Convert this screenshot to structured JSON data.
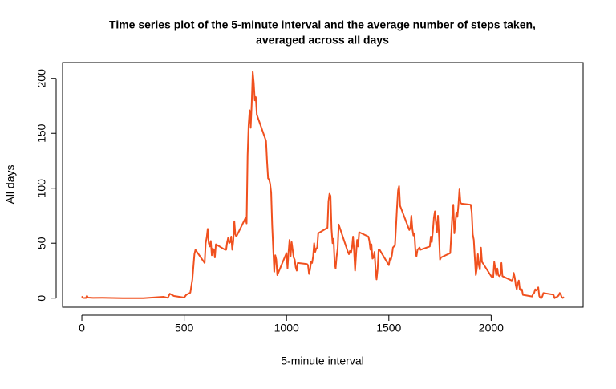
{
  "chart_data": {
    "type": "line",
    "title": [
      "Time series plot of the 5-minute interval and the average number of steps taken,",
      "averaged across all days"
    ],
    "x_label": "5-minute interval",
    "y_label": "All days",
    "x": [
      0,
      5,
      10,
      15,
      20,
      25,
      30,
      55,
      100,
      200,
      300,
      400,
      420,
      430,
      440,
      450,
      500,
      510,
      530,
      540,
      550,
      555,
      600,
      605,
      610,
      615,
      620,
      625,
      630,
      635,
      640,
      645,
      650,
      655,
      700,
      705,
      710,
      715,
      720,
      725,
      730,
      735,
      740,
      745,
      750,
      755,
      800,
      805,
      810,
      815,
      820,
      825,
      830,
      835,
      840,
      845,
      850,
      855,
      900,
      905,
      910,
      915,
      920,
      925,
      930,
      935,
      940,
      945,
      950,
      955,
      1000,
      1005,
      1010,
      1015,
      1020,
      1025,
      1030,
      1035,
      1040,
      1045,
      1050,
      1055,
      1100,
      1105,
      1110,
      1115,
      1120,
      1125,
      1130,
      1135,
      1140,
      1145,
      1150,
      1155,
      1200,
      1205,
      1210,
      1215,
      1220,
      1225,
      1230,
      1235,
      1240,
      1245,
      1250,
      1255,
      1300,
      1305,
      1310,
      1315,
      1320,
      1325,
      1330,
      1335,
      1340,
      1345,
      1350,
      1355,
      1400,
      1405,
      1410,
      1415,
      1420,
      1425,
      1430,
      1435,
      1440,
      1445,
      1450,
      1455,
      1500,
      1505,
      1510,
      1515,
      1520,
      1525,
      1530,
      1535,
      1540,
      1545,
      1550,
      1555,
      1600,
      1605,
      1610,
      1615,
      1620,
      1625,
      1630,
      1635,
      1640,
      1645,
      1650,
      1655,
      1700,
      1705,
      1710,
      1715,
      1720,
      1725,
      1730,
      1735,
      1740,
      1745,
      1750,
      1755,
      1800,
      1805,
      1810,
      1815,
      1820,
      1825,
      1830,
      1835,
      1840,
      1845,
      1850,
      1855,
      1900,
      1905,
      1910,
      1915,
      1920,
      1925,
      1930,
      1935,
      1940,
      1945,
      1950,
      1955,
      2000,
      2005,
      2010,
      2015,
      2020,
      2025,
      2030,
      2035,
      2040,
      2045,
      2050,
      2055,
      2100,
      2105,
      2110,
      2115,
      2120,
      2125,
      2130,
      2135,
      2140,
      2145,
      2150,
      2155,
      2200,
      2205,
      2210,
      2215,
      2220,
      2225,
      2230,
      2235,
      2240,
      2245,
      2250,
      2255,
      2300,
      2305,
      2310,
      2315,
      2320,
      2325,
      2330,
      2335,
      2340,
      2345,
      2350,
      2355
    ],
    "series": [
      {
        "name": "All days",
        "color": "#f0501e",
        "values": [
          1.7,
          0.3,
          0.1,
          0.2,
          0.1,
          2.1,
          0.5,
          0.2,
          0.3,
          0,
          0,
          1.2,
          0.3,
          4,
          3,
          2,
          0.5,
          3,
          5,
          17,
          40,
          44,
          32,
          50,
          55,
          63,
          50,
          47,
          52,
          39,
          45,
          44,
          37,
          49,
          44,
          44,
          51,
          55,
          50,
          51,
          56,
          44,
          52,
          70,
          58,
          56,
          73,
          68,
          130,
          158,
          171,
          155,
          177,
          206,
          196,
          180,
          183,
          167,
          143,
          124,
          109,
          108,
          104,
          96,
          66,
          45,
          24,
          39,
          35,
          21,
          41,
          27,
          42,
          53,
          38,
          51,
          44,
          37,
          35,
          28,
          25,
          32,
          31,
          30,
          22,
          26,
          33,
          32,
          38,
          50,
          42,
          45,
          46,
          59,
          64,
          88,
          95,
          93,
          63,
          50,
          54,
          32,
          27,
          38,
          45,
          67,
          42,
          40,
          43,
          41,
          46,
          56,
          43,
          25,
          40,
          53,
          47,
          60,
          56,
          52,
          44,
          49,
          36,
          37,
          42,
          27,
          17,
          26,
          44,
          44,
          30,
          36,
          35,
          39,
          46,
          47,
          48,
          65,
          83,
          98,
          102,
          84,
          62,
          64,
          75,
          63,
          57,
          59,
          43,
          38,
          44,
          45,
          46,
          44,
          47,
          56,
          51,
          61,
          73,
          79,
          69,
          60,
          75,
          57,
          35,
          37,
          41,
          58,
          75,
          85,
          59,
          68,
          78,
          74,
          85,
          99,
          87,
          86,
          85,
          78,
          58,
          53,
          37,
          21,
          27,
          40,
          30,
          26,
          46,
          33,
          20,
          19,
          19,
          33,
          27,
          21,
          27,
          21,
          20,
          21,
          32,
          20,
          16,
          17,
          23,
          19,
          12,
          8,
          14,
          16,
          8,
          7,
          8,
          3,
          1.5,
          4,
          4.7,
          8,
          7,
          8,
          9.8,
          2,
          0.3,
          0.1,
          1.6,
          4.6,
          3.3,
          2.8,
          0,
          0.8,
          1,
          1.6,
          2.6,
          4.7,
          3.3,
          0.6,
          0.2,
          1.1
        ]
      }
    ],
    "xlim": [
      -94.2,
      2449.2
    ],
    "ylim": [
      -8.25,
      214.42
    ],
    "xticks": [
      0,
      500,
      1000,
      1500,
      2000
    ],
    "yticks": [
      0,
      50,
      100,
      150,
      200
    ]
  }
}
